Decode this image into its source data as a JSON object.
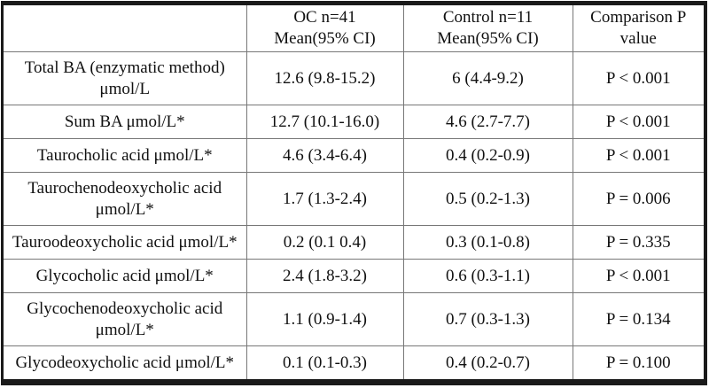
{
  "table": {
    "header": {
      "corner": "",
      "col_oc_line1": "OC n=41",
      "col_oc_line2": "Mean(95% CI)",
      "col_control_line1": "Control n=11",
      "col_control_line2": "Mean(95% CI)",
      "col_p_line1": "Comparison P",
      "col_p_line2": "value"
    },
    "rows": [
      {
        "label1": "Total BA (enzymatic method)",
        "label2": "μmol/L",
        "oc": "12.6 (9.8-15.2)",
        "control": "6 (4.4-9.2)",
        "p": "P < 0.001"
      },
      {
        "label1": "Sum BA μmol/L*",
        "label2": "",
        "oc": "12.7 (10.1-16.0)",
        "control": "4.6 (2.7-7.7)",
        "p": "P < 0.001"
      },
      {
        "label1": "Taurocholic acid μmol/L*",
        "label2": "",
        "oc": "4.6 (3.4-6.4)",
        "control": "0.4 (0.2-0.9)",
        "p": "P < 0.001"
      },
      {
        "label1": "Taurochenodeoxycholic acid",
        "label2": "μmol/L*",
        "oc": "1.7 (1.3-2.4)",
        "control": "0.5 (0.2-1.3)",
        "p": "P = 0.006"
      },
      {
        "label1": "Tauroodeoxycholic acid μmol/L*",
        "label2": "",
        "oc": "0.2 (0.1 0.4)",
        "control": "0.3 (0.1-0.8)",
        "p": "P = 0.335"
      },
      {
        "label1": "Glycocholic acid μmol/L*",
        "label2": "",
        "oc": "2.4 (1.8-3.2)",
        "control": "0.6 (0.3-1.1)",
        "p": "P < 0.001"
      },
      {
        "label1": "Glycochenodeoxycholic acid",
        "label2": "μmol/L*",
        "oc": "1.1 (0.9-1.4)",
        "control": "0.7 (0.3-1.3)",
        "p": "P = 0.134"
      },
      {
        "label1": "Glycodeoxycholic acid μmol/L*",
        "label2": "",
        "oc": "0.1 (0.1-0.3)",
        "control": "0.4 (0.2-0.7)",
        "p": "P = 0.100"
      }
    ],
    "colors": {
      "outer_border": "#1a1a1a",
      "inner_line": "#777777",
      "text": "#111111",
      "background": "#ffffff"
    }
  }
}
